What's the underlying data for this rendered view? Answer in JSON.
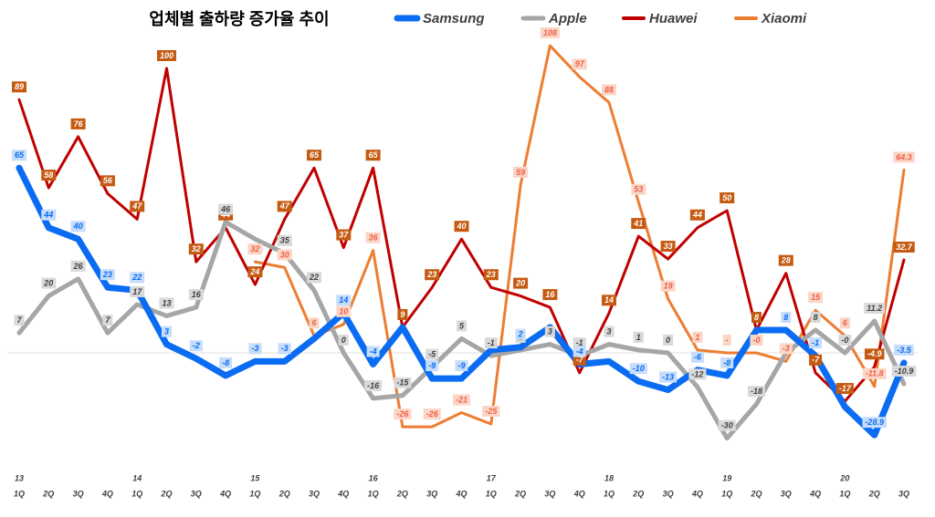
{
  "chart_data": {
    "type": "line",
    "title": "업체별 출하량 증가율 추이",
    "categories": [
      "1Q",
      "2Q",
      "3Q",
      "4Q",
      "1Q",
      "2Q",
      "3Q",
      "4Q",
      "1Q",
      "2Q",
      "3Q",
      "4Q",
      "1Q",
      "2Q",
      "3Q",
      "4Q",
      "1Q",
      "2Q",
      "3Q",
      "4Q",
      "1Q",
      "2Q",
      "3Q",
      "4Q",
      "1Q",
      "2Q",
      "3Q",
      "4Q",
      "1Q",
      "2Q",
      "3Q"
    ],
    "year_labels": [
      "13",
      null,
      null,
      null,
      "14",
      null,
      null,
      null,
      "15",
      null,
      null,
      null,
      "16",
      null,
      null,
      null,
      "17",
      null,
      null,
      null,
      "18",
      null,
      null,
      null,
      "19",
      null,
      null,
      null,
      "20",
      null,
      null
    ],
    "ylim": [
      -40,
      115
    ],
    "series": [
      {
        "name": "Xiaomi",
        "color": "#ed7d31",
        "values": [
          null,
          null,
          null,
          null,
          null,
          null,
          null,
          null,
          32,
          30,
          6,
          10,
          36,
          -26,
          -26,
          -21,
          -25,
          59,
          108,
          97,
          88,
          53,
          19,
          1,
          0,
          0,
          -3,
          15,
          6,
          -11.8,
          64.3
        ],
        "value_labels": [
          null,
          null,
          null,
          null,
          null,
          null,
          null,
          null,
          "32",
          "30",
          "6",
          "10",
          "36",
          "-26",
          "-26",
          "-21",
          "-25",
          "59",
          "108",
          "97",
          "88",
          "53",
          "19",
          "1",
          "-",
          "-0",
          "-3",
          "15",
          "6",
          "-11.8",
          "64.3"
        ]
      },
      {
        "name": "Huawei",
        "color": "#c00000",
        "values": [
          89,
          58,
          76,
          56,
          47,
          100,
          32,
          44,
          24,
          47,
          65,
          37,
          65,
          9,
          23,
          40,
          23,
          20,
          16,
          -7,
          14,
          41,
          33,
          44,
          50,
          8,
          28,
          -7,
          -17,
          -4.9,
          32.7
        ],
        "value_labels": [
          "89",
          "58",
          "76",
          "56",
          "47",
          "100",
          "32",
          "44",
          "24",
          "47",
          "65",
          "37",
          "65",
          "9",
          "23",
          "40",
          "23",
          "20",
          "16",
          "-7",
          "14",
          "41",
          "33",
          "44",
          "50",
          "8",
          "28",
          "-7",
          "-17",
          "-4.9",
          "32.7"
        ]
      },
      {
        "name": "Apple",
        "color": "#a6a6a6",
        "values": [
          7,
          20,
          26,
          7,
          17,
          13,
          16,
          46,
          40,
          35,
          22,
          0,
          -16,
          -15,
          -5,
          5,
          -1,
          1,
          3,
          -1,
          3,
          1,
          0,
          -12,
          -30,
          -18,
          0,
          8,
          0,
          11.2,
          -10.9
        ],
        "value_labels": [
          "7",
          "20",
          "26",
          "7",
          "17",
          "13",
          "16",
          "46",
          null,
          "35",
          "22",
          "0",
          "-16",
          "-15",
          "-5",
          "5",
          "-1",
          "1",
          "3",
          "-1",
          "3",
          "1",
          "0",
          "-12",
          "-30",
          "-18",
          null,
          "8",
          "-0",
          "11.2",
          "-10.9"
        ]
      },
      {
        "name": "Samsung",
        "color": "#0a6cf2",
        "values": [
          65,
          44,
          40,
          23,
          22,
          3,
          -2,
          -8,
          -3,
          -3,
          5,
          14,
          -4,
          9,
          -9,
          -9,
          1,
          2,
          9,
          -4,
          -3,
          -10,
          -13,
          -6,
          -8,
          8,
          8,
          -1,
          -19,
          -28.9,
          -3.5
        ],
        "value_labels": [
          "65",
          "44",
          "40",
          "23",
          "22",
          "3",
          "-2",
          "-8",
          "-3",
          "-3",
          null,
          "14",
          "-4",
          null,
          "-9",
          "-9",
          null,
          "2",
          null,
          "-4",
          null,
          "-10",
          "-13",
          "-6",
          "-8",
          null,
          "8",
          "-1",
          null,
          "-28.9",
          "-3.5"
        ]
      }
    ]
  }
}
